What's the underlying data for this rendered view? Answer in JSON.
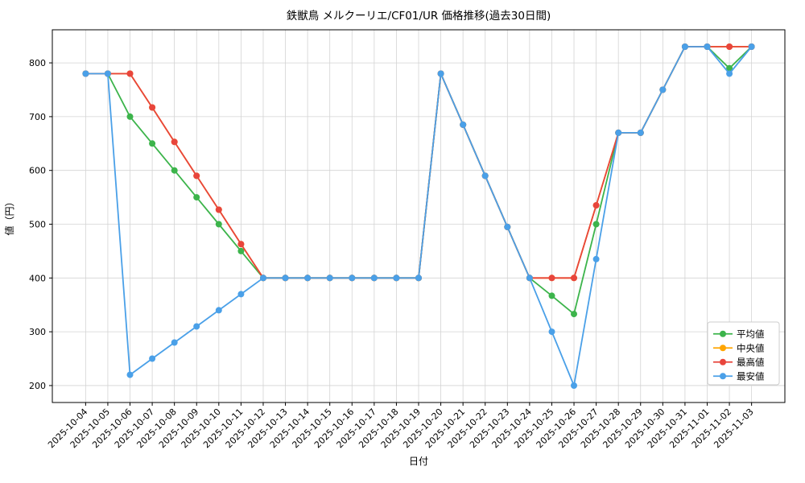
{
  "chart_data": {
    "type": "line",
    "title": "鉄獣鳥 メルクーリエ/CF01/UR 価格推移(過去30日間)",
    "xlabel": "日付",
    "ylabel": "値（円）",
    "ylim": [
      168.5,
      861.5
    ],
    "yticks": [
      200,
      300,
      400,
      500,
      600,
      700,
      800
    ],
    "grid": true,
    "grid_color": "#d3d3d3",
    "background": "#ffffff",
    "legend_position": "lower right",
    "categories": [
      "2025-10-04",
      "2025-10-05",
      "2025-10-06",
      "2025-10-07",
      "2025-10-08",
      "2025-10-09",
      "2025-10-10",
      "2025-10-11",
      "2025-10-12",
      "2025-10-13",
      "2025-10-14",
      "2025-10-15",
      "2025-10-16",
      "2025-10-17",
      "2025-10-18",
      "2025-10-19",
      "2025-10-20",
      "2025-10-21",
      "2025-10-22",
      "2025-10-23",
      "2025-10-24",
      "2025-10-25",
      "2025-10-26",
      "2025-10-27",
      "2025-10-28",
      "2025-10-29",
      "2025-10-30",
      "2025-10-31",
      "2025-11-01",
      "2025-11-02",
      "2025-11-03"
    ],
    "series": [
      {
        "name": "平均値",
        "color": "#3cb44b",
        "values": [
          780,
          780,
          700,
          650,
          600,
          550,
          500,
          450,
          400,
          400,
          400,
          400,
          400,
          400,
          400,
          400,
          780,
          685,
          590,
          495,
          400,
          367,
          333,
          500,
          670,
          670,
          750,
          830,
          830,
          790,
          830
        ]
      },
      {
        "name": "中央値",
        "color": "#ffa500",
        "values": [
          780,
          780,
          780,
          717,
          653,
          590,
          527,
          463,
          400,
          400,
          400,
          400,
          400,
          400,
          400,
          400,
          780,
          685,
          590,
          495,
          400,
          400,
          400,
          535,
          670,
          670,
          750,
          830,
          830,
          830,
          830
        ]
      },
      {
        "name": "最高値",
        "color": "#e8453c",
        "values": [
          780,
          780,
          780,
          717,
          653,
          590,
          527,
          463,
          400,
          400,
          400,
          400,
          400,
          400,
          400,
          400,
          780,
          685,
          590,
          495,
          400,
          400,
          400,
          535,
          670,
          670,
          750,
          830,
          830,
          830,
          830
        ]
      },
      {
        "name": "最安値",
        "color": "#4aa0e8",
        "values": [
          780,
          780,
          220,
          250,
          280,
          310,
          340,
          370,
          400,
          400,
          400,
          400,
          400,
          400,
          400,
          400,
          780,
          685,
          590,
          495,
          400,
          300,
          200,
          435,
          670,
          670,
          750,
          830,
          830,
          780,
          830
        ]
      }
    ]
  }
}
